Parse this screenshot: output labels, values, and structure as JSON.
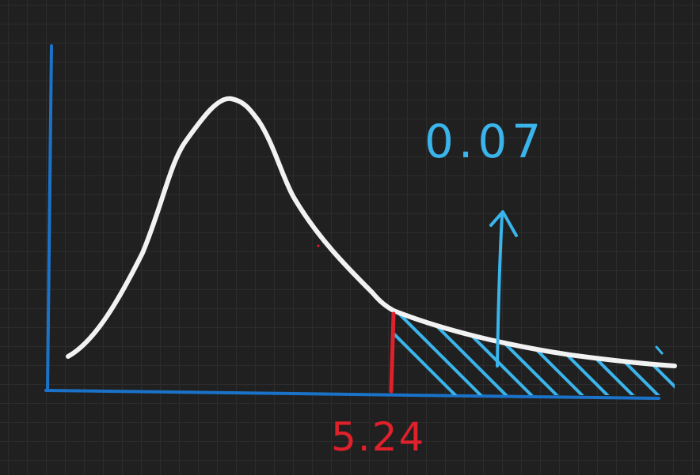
{
  "sketch": {
    "tail_probability_label": "0.07",
    "critical_value_label": "5.24",
    "colors": {
      "background": "#202020",
      "grid": "#2c2c2c",
      "axes": "#1a73c9",
      "curve": "#f2f2f2",
      "critical_line": "#e0202a",
      "shading": "#3ab4ea",
      "annotation": "#3ab4ea"
    }
  }
}
